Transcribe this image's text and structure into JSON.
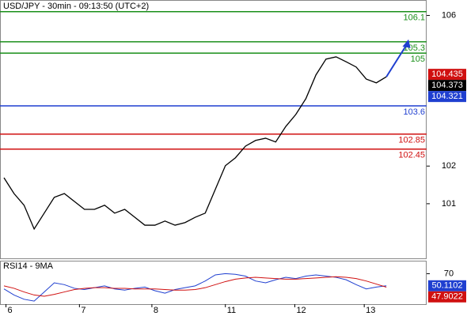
{
  "chart_data": {
    "type": "line",
    "title": "USD/JPY - 30min - 09:13:50 (UTC+2)",
    "xlim": [
      0,
      42
    ],
    "xticks": [
      {
        "value": 0.2,
        "label": "6"
      },
      {
        "value": 7.5,
        "label": "7"
      },
      {
        "value": 14.7,
        "label": "8"
      },
      {
        "value": 22,
        "label": "11"
      },
      {
        "value": 28.9,
        "label": "12"
      },
      {
        "value": 35.8,
        "label": "13"
      }
    ],
    "ylim": [
      99.55,
      106.41
    ],
    "yticks": [
      101,
      102,
      106
    ],
    "series": [
      {
        "name": "USD/JPY",
        "color": "#000000",
        "values": [
          101.69,
          101.27,
          100.96,
          100.33,
          100.75,
          101.17,
          101.27,
          101.06,
          100.85,
          100.85,
          100.96,
          100.75,
          100.85,
          100.64,
          100.43,
          100.43,
          100.54,
          100.43,
          100.5,
          100.64,
          100.75,
          101.38,
          102.01,
          102.22,
          102.53,
          102.68,
          102.74,
          102.64,
          103.05,
          103.37,
          103.79,
          104.42,
          104.84,
          104.9,
          104.77,
          104.63,
          104.31,
          104.21,
          104.37
        ]
      }
    ],
    "levels": [
      {
        "value": 106.1,
        "color": "#1a8f1a"
      },
      {
        "value": 105.3,
        "color": "#1a8f1a"
      },
      {
        "value": 105,
        "color": "#1a8f1a"
      },
      {
        "value": 103.6,
        "color": "#1f3fd0"
      },
      {
        "value": 102.85,
        "color": "#d01010"
      },
      {
        "value": 102.45,
        "color": "#d01010"
      }
    ],
    "price_labels": [
      {
        "value": 104.435,
        "color": "#d01010"
      },
      {
        "value": 104.373,
        "color": "#000000"
      },
      {
        "value": 104.321,
        "color": "#1f3fd0"
      }
    ],
    "rsi": {
      "title": "RSI14 - 9MA",
      "ylim": [
        20,
        90
      ],
      "yticks": [
        70
      ],
      "series": [
        {
          "name": "RSI14",
          "color": "#1f3fd0",
          "values": [
            45,
            35,
            28,
            25,
            40,
            55,
            52,
            46,
            44,
            47,
            50,
            45,
            43,
            46,
            48,
            42,
            38,
            44,
            47,
            50,
            58,
            68,
            70,
            69,
            66,
            58,
            55,
            60,
            64,
            62,
            66,
            68,
            66,
            64,
            60,
            52,
            45,
            48,
            50.1102
          ]
        },
        {
          "name": "9MA",
          "color": "#d01010",
          "values": [
            50,
            46,
            40,
            35,
            33,
            36,
            40,
            44,
            46,
            47,
            47,
            46,
            46,
            45,
            45,
            45,
            44,
            43,
            43,
            44,
            47,
            52,
            57,
            61,
            63,
            64,
            63,
            62,
            61,
            61,
            62,
            63,
            64,
            65,
            64,
            62,
            58,
            53,
            47.9022
          ]
        }
      ]
    }
  }
}
